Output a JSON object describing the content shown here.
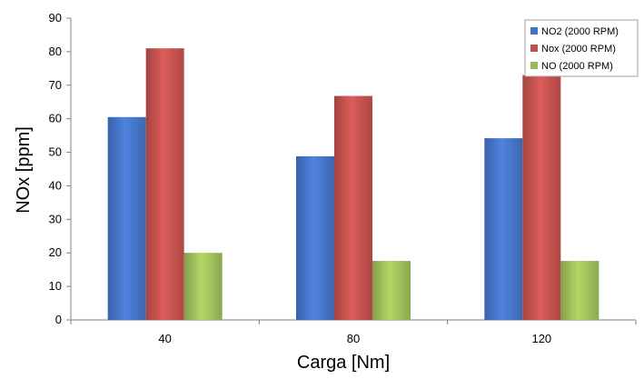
{
  "chart_data": {
    "type": "bar",
    "xlabel": "Carga [Nm]",
    "ylabel": "NOx [ppm]",
    "categories": [
      "40",
      "80",
      "120"
    ],
    "ylim": [
      0,
      90
    ],
    "yticks": [
      0,
      10,
      20,
      30,
      40,
      50,
      60,
      70,
      80,
      90
    ],
    "series": [
      {
        "name": "NO2 (2000 RPM)",
        "values": [
          60.5,
          48.8,
          54.2
        ],
        "color": "#4472C4"
      },
      {
        "name": "Nox (2000 RPM)",
        "values": [
          81,
          66.8,
          73
        ],
        "color": "#C0504D"
      },
      {
        "name": "NO (2000 RPM)",
        "values": [
          20,
          17.6,
          17.6
        ],
        "color": "#9BBB59"
      }
    ],
    "grid": false,
    "legend_position": "top-right"
  }
}
